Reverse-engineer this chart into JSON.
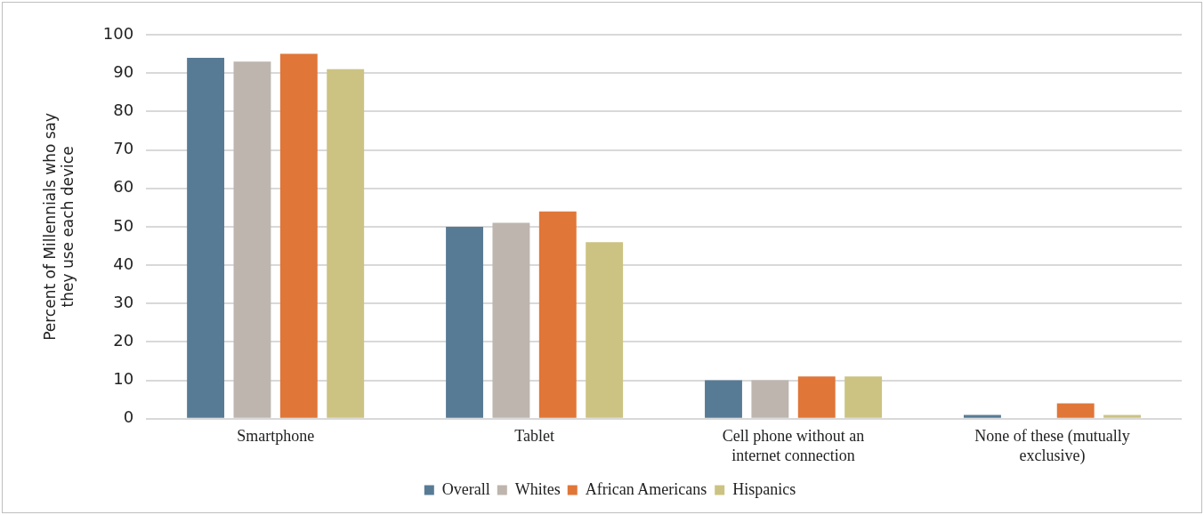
{
  "chart_data": {
    "type": "bar",
    "categories": [
      "Smartphone",
      "Tablet",
      "Cell phone without an internet connection",
      "None of these (mutually exclusive)"
    ],
    "ylabel": "Percent of Millennials who say they use each device",
    "series": [
      {
        "name": "Overall",
        "color": "#587b95",
        "values": [
          94,
          50,
          10,
          1
        ]
      },
      {
        "name": "Whites",
        "color": "#bdb5ae",
        "values": [
          93,
          51,
          10,
          0
        ]
      },
      {
        "name": "African Americans",
        "color": "#e07638",
        "values": [
          95,
          54,
          11,
          4
        ]
      },
      {
        "name": "Hispanics",
        "color": "#ccc382",
        "values": [
          91,
          46,
          11,
          1
        ]
      }
    ],
    "ylim": [
      0,
      100
    ],
    "yticks": [
      0,
      10,
      20,
      30,
      40,
      50,
      60,
      70,
      80,
      90,
      100
    ],
    "grid": "y",
    "legend": "bottom"
  }
}
